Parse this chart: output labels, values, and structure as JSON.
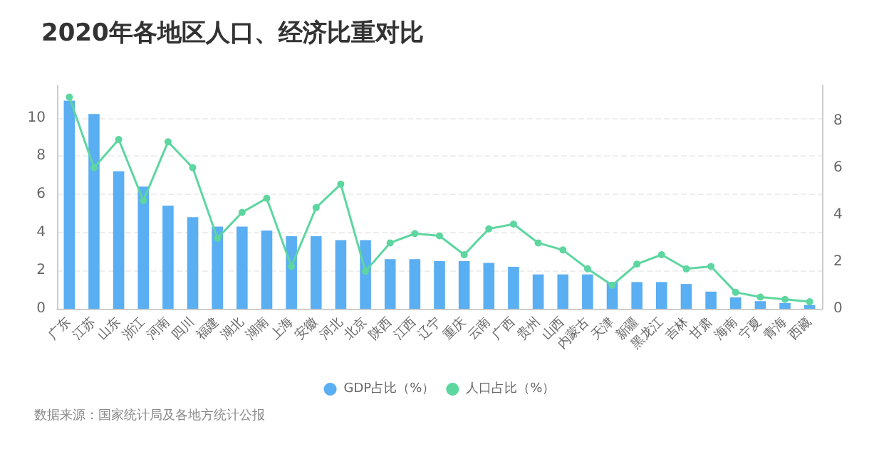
{
  "chart_data": {
    "type": "bar",
    "title": "2020年各地区人口、经济比重对比",
    "categories": [
      "广东",
      "江苏",
      "山东",
      "浙江",
      "河南",
      "四川",
      "福建",
      "湖北",
      "湖南",
      "上海",
      "安徽",
      "河北",
      "北京",
      "陕西",
      "江西",
      "辽宁",
      "重庆",
      "云南",
      "广西",
      "贵州",
      "山西",
      "内蒙古",
      "天津",
      "新疆",
      "黑龙江",
      "吉林",
      "甘肃",
      "海南",
      "宁夏",
      "青海",
      "西藏"
    ],
    "series": [
      {
        "name": "GDP占比（%）",
        "color": "#5aaef2",
        "values": [
          10.9,
          10.2,
          7.2,
          6.4,
          5.4,
          4.8,
          4.3,
          4.3,
          4.1,
          3.8,
          3.8,
          3.6,
          3.6,
          2.6,
          2.6,
          2.5,
          2.5,
          2.4,
          2.2,
          1.8,
          1.8,
          1.8,
          1.4,
          1.4,
          1.4,
          1.3,
          0.9,
          0.6,
          0.4,
          0.3,
          0.2
        ]
      },
      {
        "name": "人口占比（%）",
        "type": "line",
        "axis": "y2",
        "color": "#5dd6a0",
        "values": [
          9.0,
          6.0,
          7.2,
          4.6,
          7.1,
          6.0,
          3.0,
          4.1,
          4.7,
          1.8,
          4.3,
          5.3,
          1.6,
          2.8,
          3.2,
          3.1,
          2.3,
          3.4,
          3.6,
          2.8,
          2.5,
          1.7,
          1.0,
          1.9,
          2.3,
          1.7,
          1.8,
          0.7,
          0.5,
          0.4,
          0.3
        ]
      }
    ],
    "ylim": [
      0,
      11.7
    ],
    "yticks": [
      0,
      2,
      4,
      6,
      8,
      10
    ],
    "y2lim": [
      0,
      9.5
    ],
    "y2ticks": [
      0,
      2,
      4,
      6,
      8
    ],
    "grid": "y",
    "legend": "bottom",
    "marker": "circle",
    "annotations": [
      "数据来源：国家统计局及各地方统计公报"
    ]
  }
}
